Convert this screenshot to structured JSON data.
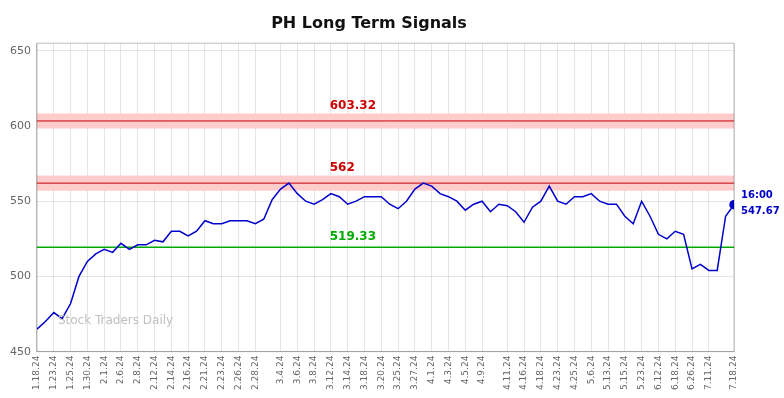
{
  "chart_data": {
    "type": "line",
    "title": "PH Long Term Signals",
    "categories": [
      "1.18.24",
      null,
      "1.23.24",
      null,
      "1.25.24",
      null,
      "1.30.24",
      null,
      "2.1.24",
      null,
      "2.6.24",
      null,
      "2.8.24",
      null,
      "2.12.24",
      null,
      "2.14.24",
      null,
      "2.16.24",
      null,
      "2.21.24",
      null,
      "2.23.24",
      null,
      "2.26.24",
      null,
      "2.28.24",
      null,
      null,
      "3.4.24",
      null,
      "3.6.24",
      null,
      "3.8.24",
      null,
      "3.12.24",
      null,
      "3.14.24",
      null,
      "3.18.24",
      null,
      "3.20.24",
      null,
      "3.25.24",
      null,
      "3.27.24",
      null,
      "4.1.24",
      null,
      "4.3.24",
      null,
      "4.5.24",
      null,
      "4.9.24",
      null,
      null,
      "4.11.24",
      null,
      "4.16.24",
      null,
      "4.18.24",
      null,
      "4.23.24",
      null,
      "4.25.24",
      null,
      "5.6.24",
      null,
      "5.13.24",
      null,
      "5.15.24",
      null,
      "5.23.24",
      null,
      "6.12.24",
      null,
      "6.18.24",
      null,
      "6.26.24",
      null,
      "7.11.24",
      null,
      null,
      "7.18.24"
    ],
    "values": [
      465,
      470,
      476,
      472,
      482,
      500,
      510,
      515,
      518,
      516,
      522,
      518,
      521,
      521,
      524,
      523,
      530,
      530,
      527,
      530,
      537,
      535,
      535,
      537,
      537,
      537,
      535,
      538,
      551,
      558,
      562,
      555,
      550,
      548,
      551,
      555,
      553,
      548,
      550,
      553,
      553,
      553,
      548,
      545,
      550,
      558,
      562,
      560,
      555,
      553,
      550,
      544,
      548,
      550,
      543,
      548,
      547,
      543,
      536,
      546,
      550,
      560,
      550,
      548,
      553,
      553,
      555,
      550,
      548,
      548,
      540,
      535,
      550,
      540,
      528,
      525,
      530,
      528,
      505,
      508,
      504,
      504,
      540,
      547.67
    ],
    "color": "#0000cc",
    "ylim": [
      450,
      655
    ],
    "yticks": [
      450,
      500,
      550,
      600,
      650
    ],
    "grid": true,
    "reference_lines": [
      {
        "value": 603.32,
        "label": "603.32",
        "color": "#cc0000",
        "band": [
          598.32,
          608.32
        ],
        "band_color": "#ffcccc"
      },
      {
        "value": 562,
        "label": "562",
        "color": "#cc0000",
        "band": [
          557,
          567
        ],
        "band_color": "#ffcccc"
      },
      {
        "value": 519.33,
        "label": "519.33",
        "color": "#00aa00"
      }
    ],
    "last_point_labels": [
      "16:00",
      "547.67"
    ],
    "watermark": "Stock Traders Daily"
  }
}
